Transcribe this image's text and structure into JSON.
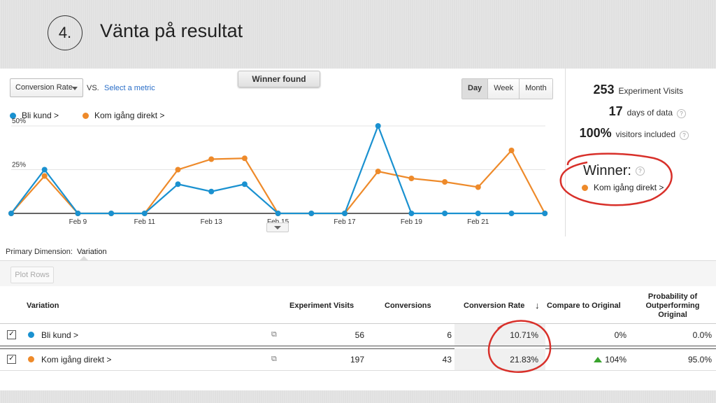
{
  "slide": {
    "step": "4.",
    "title": "Vänta på resultat"
  },
  "controls": {
    "metric_select": "Conversion Rate",
    "vs": "VS.",
    "select_metric": "Select a metric",
    "winner_found": "Winner found",
    "range_buttons": [
      "Day",
      "Week",
      "Month"
    ],
    "selected_range": "Day"
  },
  "legend": {
    "series_a": "Bli kund >",
    "series_b": "Kom igång direkt >"
  },
  "colors": {
    "series_a": "#1a91d0",
    "series_b": "#ee8a2a",
    "annotation": "#d8302a",
    "up": "#39a32d"
  },
  "chart_data": {
    "type": "line",
    "ylim": [
      0,
      50
    ],
    "yticks": [
      "50%",
      "25%"
    ],
    "x_labels": [
      "Feb 9",
      "Feb 11",
      "Feb 13",
      "Feb 15",
      "Feb 17",
      "Feb 19",
      "Feb 21"
    ],
    "x": [
      "Feb 7",
      "Feb 8",
      "Feb 9",
      "Feb 10",
      "Feb 11",
      "Feb 12",
      "Feb 13",
      "Feb 14",
      "Feb 15",
      "Feb 16",
      "Feb 17",
      "Feb 18",
      "Feb 19",
      "Feb 20",
      "Feb 21",
      "Feb 22",
      "Feb 23"
    ],
    "series": [
      {
        "name": "Bli kund >",
        "values": [
          0,
          25,
          0,
          0,
          0,
          16.7,
          12.5,
          16.7,
          0,
          0,
          0,
          50,
          0,
          0,
          0,
          0,
          0
        ]
      },
      {
        "name": "Kom igång direkt >",
        "values": [
          0,
          21.4,
          0,
          0,
          0,
          25,
          31,
          31.5,
          0,
          0,
          0,
          24,
          20,
          18,
          15,
          36,
          0
        ]
      }
    ]
  },
  "stats": [
    {
      "num": "253",
      "label": "Experiment Visits",
      "help": false
    },
    {
      "num": "17",
      "label": "days of data",
      "help": true
    },
    {
      "num": "100%",
      "label": "visitors included",
      "help": true
    }
  ],
  "winner": {
    "label": "Winner:",
    "name": "Kom igång direkt >"
  },
  "primary_dimension": {
    "label": "Primary Dimension:",
    "value": "Variation"
  },
  "plot_rows": "Plot Rows",
  "table": {
    "headers": {
      "variation": "Variation",
      "visits": "Experiment Visits",
      "conversions": "Conversions",
      "rate": "Conversion Rate",
      "compare": "Compare to Original",
      "prob": [
        "Probability of",
        "Outperforming",
        "Original"
      ]
    },
    "rows": [
      {
        "name": "Bli kund >",
        "visits": "56",
        "conversions": "6",
        "rate": "10.71%",
        "compare": "0%",
        "prob": "0.0%",
        "up": false
      },
      {
        "name": "Kom igång direkt >",
        "visits": "197",
        "conversions": "43",
        "rate": "21.83%",
        "compare": "104%",
        "prob": "95.0%",
        "up": true
      }
    ]
  }
}
